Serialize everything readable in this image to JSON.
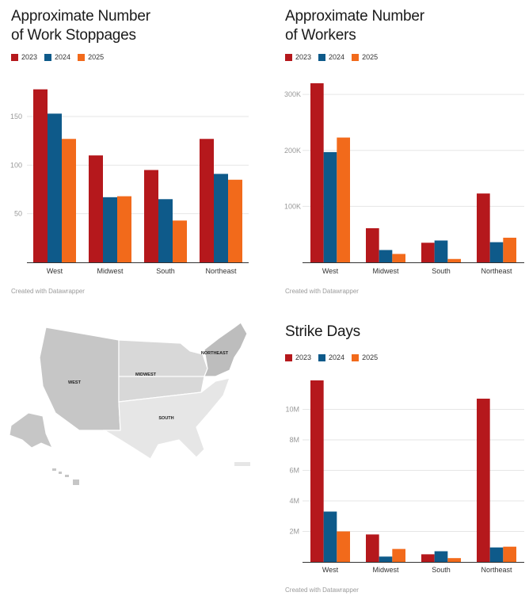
{
  "colors": {
    "c2023": "#b5181c",
    "c2024": "#0e5a8a",
    "c2025": "#f26a1b",
    "grid": "#e6e6e6",
    "axis": "#333333"
  },
  "legend": [
    "2023",
    "2024",
    "2025"
  ],
  "credit": "Created with Datawrapper",
  "map": {
    "regions": [
      {
        "label": "WEST",
        "color": "#c6c6c6"
      },
      {
        "label": "MIDWEST",
        "color": "#d8d8d8"
      },
      {
        "label": "SOUTH",
        "color": "#e6e6e6"
      },
      {
        "label": "NORTHEAST",
        "color": "#bdbdbd"
      }
    ]
  },
  "chart_data": [
    {
      "type": "bar",
      "title_line1": "Approximate Number",
      "title_line2": "of Work Stoppages",
      "categories": [
        "West",
        "Midwest",
        "South",
        "Northeast"
      ],
      "series": [
        {
          "name": "2023",
          "values": [
            178,
            110,
            95,
            127
          ]
        },
        {
          "name": "2024",
          "values": [
            153,
            67,
            65,
            91
          ]
        },
        {
          "name": "2025",
          "values": [
            127,
            68,
            43,
            85
          ]
        }
      ],
      "yticks": [
        50,
        100,
        150
      ],
      "ytick_labels": [
        "50",
        "100",
        "150"
      ],
      "ylim": [
        0,
        190
      ]
    },
    {
      "type": "bar",
      "title_line1": "Approximate Number",
      "title_line2": "of Workers",
      "categories": [
        "West",
        "Midwest",
        "South",
        "Northeast"
      ],
      "series": [
        {
          "name": "2023",
          "values": [
            320000,
            61000,
            35000,
            123000
          ]
        },
        {
          "name": "2024",
          "values": [
            197000,
            22000,
            39000,
            36000
          ]
        },
        {
          "name": "2025",
          "values": [
            223000,
            15000,
            6000,
            44000
          ]
        }
      ],
      "yticks": [
        100000,
        200000,
        300000
      ],
      "ytick_labels": [
        "100K",
        "200K",
        "300K"
      ],
      "ylim": [
        0,
        330000
      ]
    },
    {
      "type": "bar",
      "title_line1": "Strike Days",
      "title_line2": "",
      "categories": [
        "West",
        "Midwest",
        "South",
        "Northeast"
      ],
      "series": [
        {
          "name": "2023",
          "values": [
            11900000,
            1800000,
            500000,
            10700000
          ]
        },
        {
          "name": "2024",
          "values": [
            3300000,
            350000,
            700000,
            950000
          ]
        },
        {
          "name": "2025",
          "values": [
            2000000,
            850000,
            250000,
            1000000
          ]
        }
      ],
      "yticks": [
        2000000,
        4000000,
        6000000,
        8000000,
        10000000
      ],
      "ytick_labels": [
        "2M",
        "4M",
        "6M",
        "8M",
        "10M"
      ],
      "ylim": [
        0,
        12000000
      ]
    }
  ]
}
